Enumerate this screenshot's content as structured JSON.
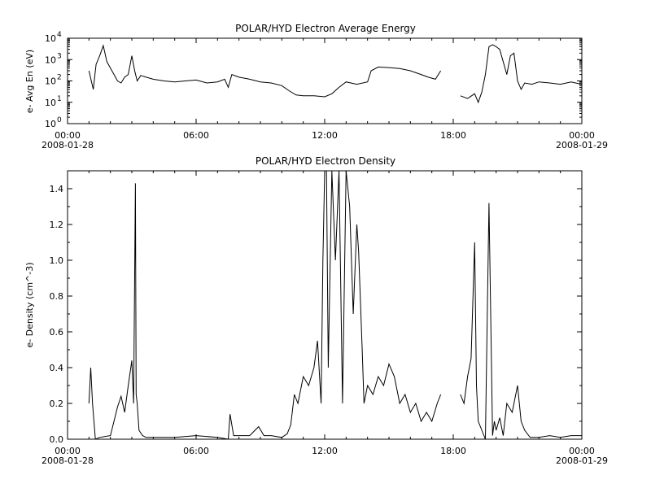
{
  "chart_data": [
    {
      "type": "line",
      "title": "POLAR/HYD  Electron Average Energy",
      "ylabel": "e- Avg En (eV)",
      "yscale": "log",
      "ylim": [
        1,
        10000
      ],
      "yticks": [
        {
          "value": 1,
          "base": "10",
          "exp": "0"
        },
        {
          "value": 10,
          "base": "10",
          "exp": "1"
        },
        {
          "value": 100,
          "base": "10",
          "exp": "2"
        },
        {
          "value": 1000,
          "base": "10",
          "exp": "3"
        },
        {
          "value": 10000,
          "base": "10",
          "exp": "4"
        }
      ],
      "xlim": [
        "2008-01-28 00:00",
        "2008-01-29 00:00"
      ],
      "xticks": [
        {
          "time": "00:00",
          "date": "2008-01-28"
        },
        {
          "time": "06:00",
          "date": ""
        },
        {
          "time": "12:00",
          "date": ""
        },
        {
          "time": "18:00",
          "date": ""
        },
        {
          "time": "00:00",
          "date": "2008-01-29"
        }
      ],
      "grid": false,
      "series": [
        {
          "segments": [
            {
              "x": [
                "2008-01-28 01:00",
                "2008-01-28 01:12",
                "2008-01-28 01:20",
                "2008-01-28 01:30",
                "2008-01-28 01:40",
                "2008-01-28 01:50",
                "2008-01-28 02:00",
                "2008-01-28 02:10",
                "2008-01-28 02:20",
                "2008-01-28 02:30",
                "2008-01-28 02:40",
                "2008-01-28 02:50",
                "2008-01-28 03:00",
                "2008-01-28 03:08",
                "2008-01-28 03:15",
                "2008-01-28 03:25",
                "2008-01-28 03:40",
                "2008-01-28 04:00",
                "2008-01-28 04:30",
                "2008-01-28 05:00",
                "2008-01-28 05:30",
                "2008-01-28 06:00",
                "2008-01-28 06:30",
                "2008-01-28 07:00",
                "2008-01-28 07:20",
                "2008-01-28 07:30",
                "2008-01-28 07:40",
                "2008-01-28 08:00",
                "2008-01-28 08:30",
                "2008-01-28 09:00",
                "2008-01-28 09:30",
                "2008-01-28 10:00",
                "2008-01-28 10:20",
                "2008-01-28 10:40",
                "2008-01-28 11:00",
                "2008-01-28 11:30",
                "2008-01-28 12:00",
                "2008-01-28 12:20",
                "2008-01-28 12:40",
                "2008-01-28 13:00",
                "2008-01-28 13:30",
                "2008-01-28 14:00",
                "2008-01-28 14:10",
                "2008-01-28 14:30",
                "2008-01-28 15:00",
                "2008-01-28 15:30",
                "2008-01-28 16:00",
                "2008-01-28 16:30",
                "2008-01-28 16:50",
                "2008-01-28 17:10",
                "2008-01-28 17:25"
              ],
              "y": [
                300,
                40,
                600,
                1500,
                4500,
                800,
                400,
                200,
                100,
                80,
                150,
                200,
                1500,
                300,
                100,
                180,
                150,
                120,
                100,
                90,
                100,
                110,
                80,
                90,
                120,
                50,
                200,
                150,
                120,
                90,
                80,
                60,
                35,
                22,
                20,
                20,
                18,
                25,
                50,
                90,
                70,
                90,
                300,
                450,
                420,
                380,
                300,
                200,
                150,
                120,
                300
              ]
            },
            {
              "x": [
                "2008-01-28 18:20",
                "2008-01-28 18:40",
                "2008-01-28 19:00",
                "2008-01-28 19:10",
                "2008-01-28 19:20",
                "2008-01-28 19:30",
                "2008-01-28 19:40",
                "2008-01-28 19:50",
                "2008-01-28 20:00",
                "2008-01-28 20:10",
                "2008-01-28 20:30",
                "2008-01-28 20:40",
                "2008-01-28 20:50",
                "2008-01-28 21:00",
                "2008-01-28 21:10",
                "2008-01-28 21:20",
                "2008-01-28 21:40",
                "2008-01-28 22:00",
                "2008-01-28 22:30",
                "2008-01-28 23:00",
                "2008-01-28 23:30",
                "2008-01-28 23:59"
              ],
              "y": [
                20,
                15,
                25,
                10,
                30,
                200,
                4000,
                5000,
                4000,
                3000,
                200,
                1500,
                2000,
                100,
                40,
                80,
                70,
                90,
                80,
                70,
                90,
                70
              ]
            }
          ]
        }
      ]
    },
    {
      "type": "line",
      "title": "POLAR/HYD  Electron Density",
      "ylabel": "e- Density (cm^-3)",
      "yscale": "linear",
      "ylim": [
        0,
        1.5
      ],
      "yticks": [
        "0.0",
        "0.2",
        "0.4",
        "0.6",
        "0.8",
        "1.0",
        "1.2",
        "1.4"
      ],
      "xlim": [
        "2008-01-28 00:00",
        "2008-01-29 00:00"
      ],
      "xticks": [
        {
          "time": "00:00",
          "date": "2008-01-28"
        },
        {
          "time": "06:00",
          "date": ""
        },
        {
          "time": "12:00",
          "date": ""
        },
        {
          "time": "18:00",
          "date": ""
        },
        {
          "time": "00:00",
          "date": "2008-01-29"
        }
      ],
      "grid": false,
      "series": [
        {
          "segments": [
            {
              "x": [
                "2008-01-28 01:00",
                "2008-01-28 01:05",
                "2008-01-28 01:10",
                "2008-01-28 01:18",
                "2008-01-28 01:30",
                "2008-01-28 02:00",
                "2008-01-28 02:20",
                "2008-01-28 02:30",
                "2008-01-28 02:40",
                "2008-01-28 02:50",
                "2008-01-28 03:00",
                "2008-01-28 03:05",
                "2008-01-28 03:10",
                "2008-01-28 03:12",
                "2008-01-28 03:15",
                "2008-01-28 03:20",
                "2008-01-28 03:30",
                "2008-01-28 03:40",
                "2008-01-28 04:00",
                "2008-01-28 05:00",
                "2008-01-28 06:00",
                "2008-01-28 07:00",
                "2008-01-28 07:30",
                "2008-01-28 07:35",
                "2008-01-28 07:45",
                "2008-01-28 08:30",
                "2008-01-28 08:55",
                "2008-01-28 09:10",
                "2008-01-28 09:30",
                "2008-01-28 10:00",
                "2008-01-28 10:15",
                "2008-01-28 10:25",
                "2008-01-28 10:35",
                "2008-01-28 10:45",
                "2008-01-28 11:00",
                "2008-01-28 11:15",
                "2008-01-28 11:30",
                "2008-01-28 11:40",
                "2008-01-28 11:50",
                "2008-01-28 11:55",
                "2008-01-28 12:00",
                "2008-01-28 12:05",
                "2008-01-28 12:10",
                "2008-01-28 12:20",
                "2008-01-28 12:30",
                "2008-01-28 12:40",
                "2008-01-28 12:50",
                "2008-01-28 13:00",
                "2008-01-28 13:10",
                "2008-01-28 13:20",
                "2008-01-28 13:30",
                "2008-01-28 13:35",
                "2008-01-28 13:45",
                "2008-01-28 13:50",
                "2008-01-28 14:00",
                "2008-01-28 14:15",
                "2008-01-28 14:30",
                "2008-01-28 14:45",
                "2008-01-28 15:00",
                "2008-01-28 15:15",
                "2008-01-28 15:30",
                "2008-01-28 15:45",
                "2008-01-28 16:00",
                "2008-01-28 16:15",
                "2008-01-28 16:30",
                "2008-01-28 16:45",
                "2008-01-28 17:00",
                "2008-01-28 17:15",
                "2008-01-28 17:25"
              ],
              "y": [
                0.2,
                0.4,
                0.2,
                0.0,
                0.01,
                0.02,
                0.18,
                0.24,
                0.15,
                0.3,
                0.44,
                0.2,
                1.43,
                0.25,
                0.2,
                0.05,
                0.02,
                0.01,
                0.01,
                0.01,
                0.02,
                0.01,
                0.0,
                0.14,
                0.02,
                0.02,
                0.07,
                0.02,
                0.02,
                0.01,
                0.03,
                0.08,
                0.25,
                0.2,
                0.35,
                0.3,
                0.4,
                0.55,
                0.2,
                1.0,
                1.5,
                1.5,
                0.4,
                1.5,
                1.0,
                1.5,
                0.2,
                1.5,
                1.3,
                0.7,
                1.2,
                1.05,
                0.5,
                0.2,
                0.3,
                0.25,
                0.35,
                0.3,
                0.42,
                0.35,
                0.2,
                0.25,
                0.15,
                0.2,
                0.1,
                0.15,
                0.1,
                0.2,
                0.25
              ]
            },
            {
              "x": [
                "2008-01-28 18:20",
                "2008-01-28 18:30",
                "2008-01-28 18:40",
                "2008-01-28 18:50",
                "2008-01-28 19:00",
                "2008-01-28 19:05",
                "2008-01-28 19:10",
                "2008-01-28 19:20",
                "2008-01-28 19:30",
                "2008-01-28 19:40",
                "2008-01-28 19:50",
                "2008-01-28 19:55",
                "2008-01-28 20:00",
                "2008-01-28 20:10",
                "2008-01-28 20:20",
                "2008-01-28 20:30",
                "2008-01-28 20:45",
                "2008-01-28 21:00",
                "2008-01-28 21:10",
                "2008-01-28 21:20",
                "2008-01-28 21:35",
                "2008-01-28 22:00",
                "2008-01-28 22:30",
                "2008-01-28 23:00",
                "2008-01-28 23:30",
                "2008-01-28 23:59"
              ],
              "y": [
                0.25,
                0.2,
                0.35,
                0.45,
                1.1,
                0.3,
                0.1,
                0.05,
                0.0,
                1.32,
                0.02,
                0.1,
                0.05,
                0.12,
                0.02,
                0.2,
                0.15,
                0.3,
                0.1,
                0.05,
                0.01,
                0.01,
                0.02,
                0.01,
                0.02,
                0.02
              ]
            }
          ]
        }
      ]
    }
  ]
}
